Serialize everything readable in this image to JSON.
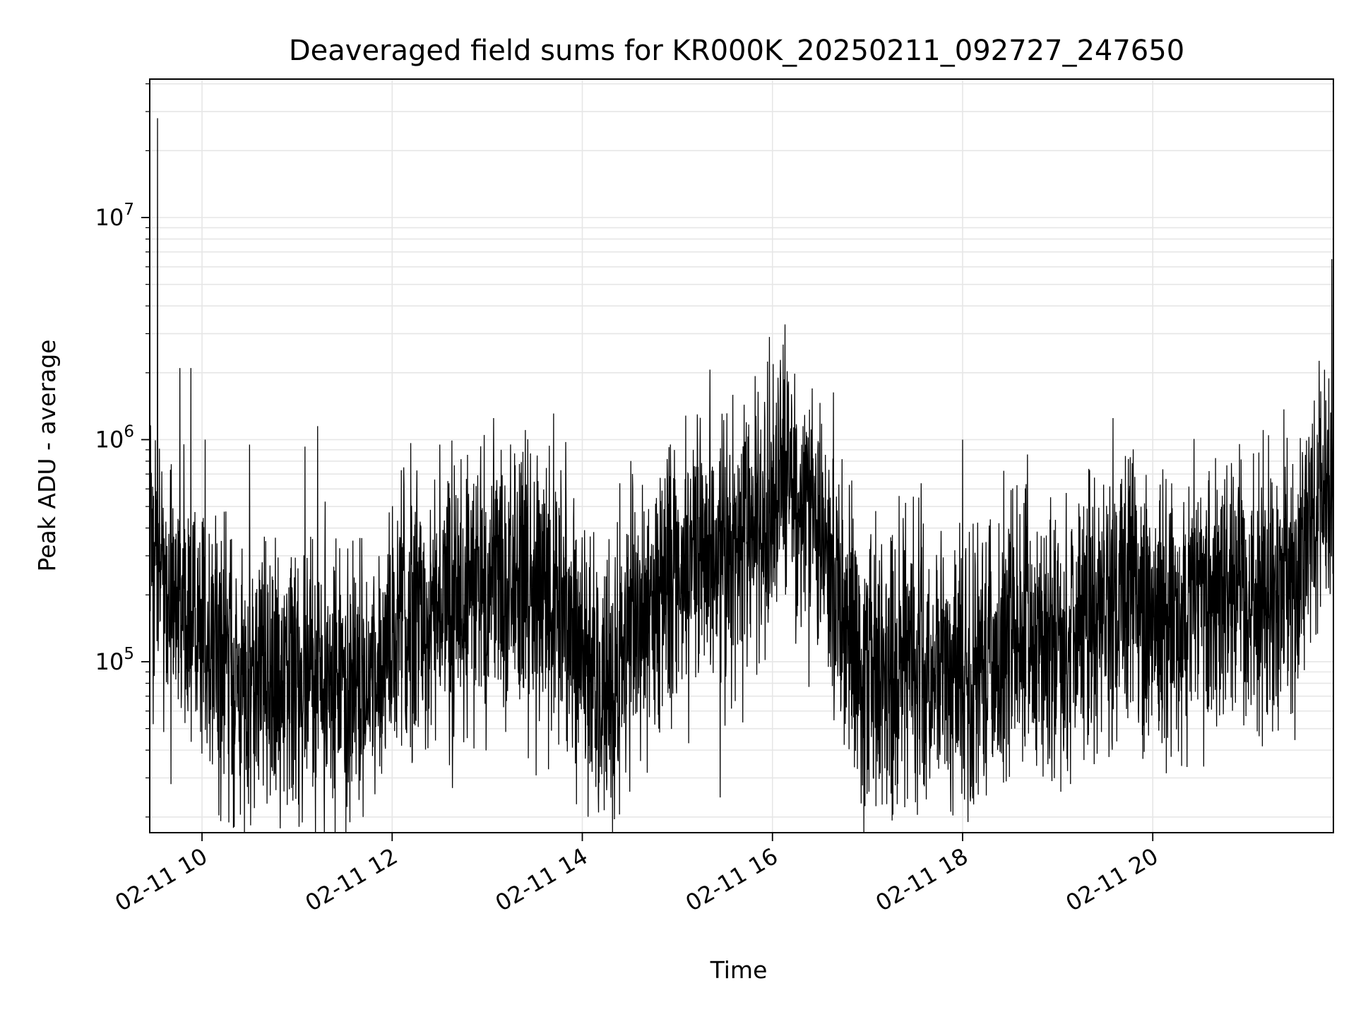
{
  "chart_data": {
    "type": "line",
    "title": "Deaveraged field sums for KR000K_20250211_092727_247650",
    "xlabel": "Time",
    "ylabel": "Peak ADU - average",
    "y_scale": "log",
    "ylim": [
      17000,
      42000000
    ],
    "xlim": [
      "2025-02-11 09:27",
      "2025-02-11 21:54"
    ],
    "grid": true,
    "line_color": "#000000",
    "grid_color": "#e6e6e6",
    "x_ticks": [
      {
        "value": "2025-02-11 10:00",
        "label": "02-11 10"
      },
      {
        "value": "2025-02-11 12:00",
        "label": "02-11 12"
      },
      {
        "value": "2025-02-11 14:00",
        "label": "02-11 14"
      },
      {
        "value": "2025-02-11 16:00",
        "label": "02-11 16"
      },
      {
        "value": "2025-02-11 18:00",
        "label": "02-11 18"
      },
      {
        "value": "2025-02-11 20:00",
        "label": "02-11 20"
      }
    ],
    "y_ticks": [
      {
        "value": 100000,
        "base": "10",
        "exp": "5"
      },
      {
        "value": 1000000,
        "base": "10",
        "exp": "6"
      },
      {
        "value": 10000000,
        "base": "10",
        "exp": "7"
      }
    ],
    "series": [
      {
        "time": [
          "2025-02-11 09:27",
          "2025-02-11 09:30",
          "2025-02-11 09:35",
          "2025-02-11 09:40",
          "2025-02-11 09:45",
          "2025-02-11 09:50",
          "2025-02-11 10:00",
          "2025-02-11 10:15",
          "2025-02-11 10:30",
          "2025-02-11 10:45",
          "2025-02-11 11:00",
          "2025-02-11 11:15",
          "2025-02-11 11:30",
          "2025-02-11 11:45",
          "2025-02-11 12:00",
          "2025-02-11 12:15",
          "2025-02-11 12:30",
          "2025-02-11 12:45",
          "2025-02-11 13:00",
          "2025-02-11 13:15",
          "2025-02-11 13:30",
          "2025-02-11 13:45",
          "2025-02-11 14:00",
          "2025-02-11 14:10",
          "2025-02-11 14:20",
          "2025-02-11 14:30",
          "2025-02-11 14:45",
          "2025-02-11 15:00",
          "2025-02-11 15:15",
          "2025-02-11 15:30",
          "2025-02-11 15:45",
          "2025-02-11 16:00",
          "2025-02-11 16:10",
          "2025-02-11 16:20",
          "2025-02-11 16:30",
          "2025-02-11 16:45",
          "2025-02-11 17:00",
          "2025-02-11 17:15",
          "2025-02-11 17:30",
          "2025-02-11 17:45",
          "2025-02-11 18:00",
          "2025-02-11 18:15",
          "2025-02-11 18:30",
          "2025-02-11 18:45",
          "2025-02-11 19:00",
          "2025-02-11 19:15",
          "2025-02-11 19:30",
          "2025-02-11 19:45",
          "2025-02-11 20:00",
          "2025-02-11 20:15",
          "2025-02-11 20:30",
          "2025-02-11 20:45",
          "2025-02-11 21:00",
          "2025-02-11 21:15",
          "2025-02-11 21:30",
          "2025-02-11 21:40",
          "2025-02-11 21:50",
          "2025-02-11 21:54"
        ],
        "level": [
          400000,
          300000,
          250000,
          200000,
          180000,
          150000,
          100000,
          85000,
          90000,
          80000,
          85000,
          90000,
          80000,
          95000,
          130000,
          150000,
          160000,
          180000,
          220000,
          230000,
          230000,
          220000,
          100000,
          70000,
          70000,
          170000,
          200000,
          220000,
          350000,
          300000,
          400000,
          600000,
          700000,
          500000,
          350000,
          150000,
          100000,
          95000,
          100000,
          90000,
          85000,
          95000,
          130000,
          130000,
          120000,
          150000,
          180000,
          220000,
          170000,
          140000,
          200000,
          220000,
          220000,
          200000,
          230000,
          500000,
          550000,
          600000
        ],
        "spikes": [
          {
            "time": "2025-02-11 09:32",
            "value": 28000000
          },
          {
            "time": "2025-02-11 09:46",
            "value": 2100000
          },
          {
            "time": "2025-02-11 09:53",
            "value": 2100000
          },
          {
            "time": "2025-02-11 10:02",
            "value": 1000000
          },
          {
            "time": "2025-02-11 10:30",
            "value": 950000
          },
          {
            "time": "2025-02-11 11:05",
            "value": 930000
          },
          {
            "time": "2025-02-11 11:13",
            "value": 1150000
          },
          {
            "time": "2025-02-11 12:30",
            "value": 950000
          },
          {
            "time": "2025-02-11 12:58",
            "value": 1050000
          },
          {
            "time": "2025-02-11 13:04",
            "value": 1250000
          },
          {
            "time": "2025-02-11 15:10",
            "value": 900000
          },
          {
            "time": "2025-02-11 15:58",
            "value": 2900000
          },
          {
            "time": "2025-02-11 16:08",
            "value": 3300000
          },
          {
            "time": "2025-02-11 16:25",
            "value": 1700000
          },
          {
            "time": "2025-02-11 18:00",
            "value": 1000000
          },
          {
            "time": "2025-02-11 19:35",
            "value": 1250000
          },
          {
            "time": "2025-02-11 21:42",
            "value": 1500000
          },
          {
            "time": "2025-02-11 21:46",
            "value": 1650000
          },
          {
            "time": "2025-02-11 21:53",
            "value": 6500000
          }
        ],
        "dips": [
          {
            "time": "2025-02-11 10:43",
            "value": 25000
          },
          {
            "time": "2025-02-11 11:17",
            "value": 27000
          },
          {
            "time": "2025-02-11 12:38",
            "value": 27000
          },
          {
            "time": "2025-02-11 14:10",
            "value": 25500
          },
          {
            "time": "2025-02-11 14:30",
            "value": 26000
          },
          {
            "time": "2025-02-11 15:27",
            "value": 24500
          },
          {
            "time": "2025-02-11 17:37",
            "value": 24000
          },
          {
            "time": "2025-02-11 18:05",
            "value": 23500
          },
          {
            "time": "2025-02-11 18:15",
            "value": 25000
          },
          {
            "time": "2025-02-11 19:02",
            "value": 26000
          }
        ]
      }
    ]
  }
}
